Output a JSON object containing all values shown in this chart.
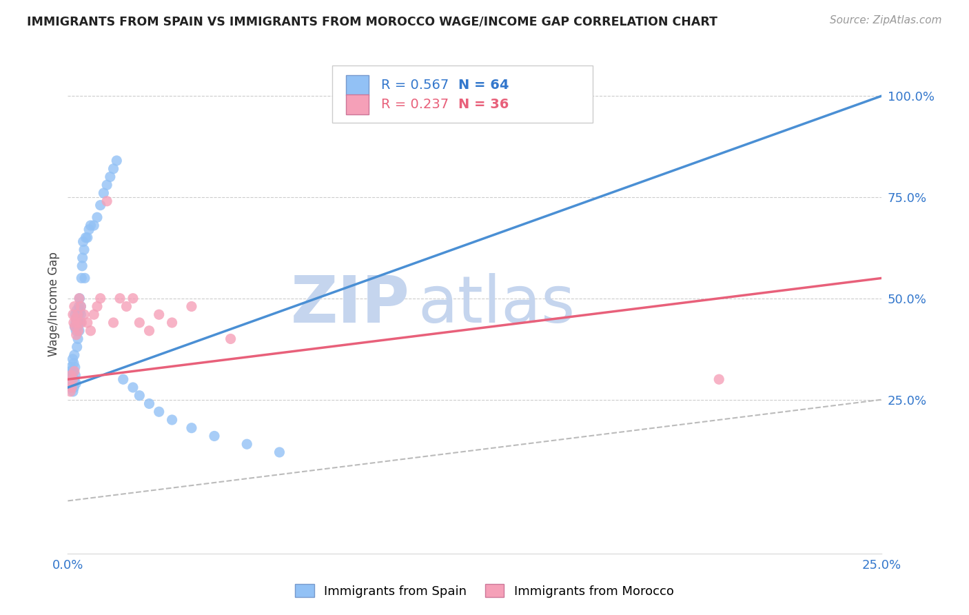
{
  "title": "IMMIGRANTS FROM SPAIN VS IMMIGRANTS FROM MOROCCO WAGE/INCOME GAP CORRELATION CHART",
  "source": "Source: ZipAtlas.com",
  "ylabel": "Wage/Income Gap",
  "xlim": [
    0.0,
    0.25
  ],
  "ylim": [
    -0.13,
    1.1
  ],
  "yticks": [
    0.25,
    0.5,
    0.75,
    1.0
  ],
  "ytick_labels": [
    "25.0%",
    "50.0%",
    "75.0%",
    "100.0%"
  ],
  "xticks": [
    0.0,
    0.05,
    0.1,
    0.15,
    0.2,
    0.25
  ],
  "xtick_labels_show": [
    "0.0%",
    "",
    "",
    "",
    "",
    "25.0%"
  ],
  "legend_spain": "Immigrants from Spain",
  "legend_morocco": "Immigrants from Morocco",
  "R_spain": "0.567",
  "N_spain": "64",
  "R_morocco": "0.237",
  "N_morocco": "36",
  "color_spain": "#92C1F5",
  "color_morocco": "#F5A0B8",
  "line_spain": "#4A8FD4",
  "line_morocco": "#E8607A",
  "line_ref_color": "#BBBBBB",
  "watermark_zip": "ZIP",
  "watermark_atlas": "atlas",
  "watermark_color_zip": "#C5D5EE",
  "watermark_color_atlas": "#C5D5EE",
  "spain_x": [
    0.0005,
    0.0008,
    0.001,
    0.001,
    0.0012,
    0.0013,
    0.0015,
    0.0015,
    0.0016,
    0.0017,
    0.0018,
    0.0019,
    0.002,
    0.002,
    0.0021,
    0.0022,
    0.0022,
    0.0023,
    0.0024,
    0.0025,
    0.0025,
    0.0026,
    0.0027,
    0.0028,
    0.003,
    0.003,
    0.0031,
    0.0032,
    0.0033,
    0.0034,
    0.0035,
    0.0036,
    0.0037,
    0.0038,
    0.004,
    0.004,
    0.0042,
    0.0044,
    0.0045,
    0.0047,
    0.005,
    0.0052,
    0.0055,
    0.006,
    0.0065,
    0.007,
    0.008,
    0.009,
    0.01,
    0.011,
    0.012,
    0.013,
    0.014,
    0.015,
    0.017,
    0.02,
    0.022,
    0.025,
    0.028,
    0.032,
    0.038,
    0.045,
    0.055,
    0.065
  ],
  "spain_y": [
    0.3,
    0.32,
    0.28,
    0.33,
    0.31,
    0.29,
    0.3,
    0.35,
    0.27,
    0.32,
    0.34,
    0.28,
    0.36,
    0.3,
    0.43,
    0.46,
    0.33,
    0.31,
    0.44,
    0.42,
    0.29,
    0.45,
    0.47,
    0.38,
    0.43,
    0.45,
    0.4,
    0.44,
    0.46,
    0.48,
    0.42,
    0.5,
    0.47,
    0.44,
    0.46,
    0.48,
    0.55,
    0.58,
    0.6,
    0.64,
    0.62,
    0.55,
    0.65,
    0.65,
    0.67,
    0.68,
    0.68,
    0.7,
    0.73,
    0.76,
    0.78,
    0.8,
    0.82,
    0.84,
    0.3,
    0.28,
    0.26,
    0.24,
    0.22,
    0.2,
    0.18,
    0.16,
    0.14,
    0.12
  ],
  "morocco_x": [
    0.0005,
    0.0008,
    0.001,
    0.0012,
    0.0015,
    0.0016,
    0.0018,
    0.002,
    0.002,
    0.0022,
    0.0024,
    0.0026,
    0.003,
    0.003,
    0.0032,
    0.0035,
    0.004,
    0.0042,
    0.005,
    0.006,
    0.007,
    0.008,
    0.009,
    0.01,
    0.012,
    0.014,
    0.016,
    0.018,
    0.02,
    0.022,
    0.025,
    0.028,
    0.032,
    0.038,
    0.05,
    0.2
  ],
  "morocco_y": [
    0.29,
    0.27,
    0.31,
    0.28,
    0.3,
    0.46,
    0.44,
    0.32,
    0.48,
    0.43,
    0.45,
    0.41,
    0.44,
    0.46,
    0.42,
    0.5,
    0.48,
    0.44,
    0.46,
    0.44,
    0.42,
    0.46,
    0.48,
    0.5,
    0.74,
    0.44,
    0.5,
    0.48,
    0.5,
    0.44,
    0.42,
    0.46,
    0.44,
    0.48,
    0.4,
    0.3
  ],
  "blue_line_x": [
    0.0,
    0.25
  ],
  "blue_line_y": [
    0.28,
    1.0
  ],
  "pink_line_x": [
    0.0,
    0.25
  ],
  "pink_line_y": [
    0.3,
    0.55
  ]
}
